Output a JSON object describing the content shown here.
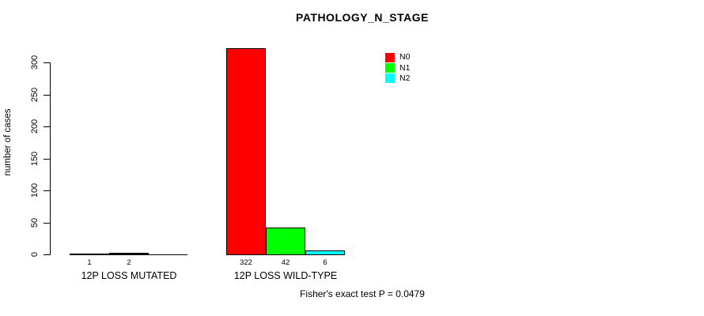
{
  "chart_data": {
    "type": "bar",
    "title": "PATHOLOGY_N_STAGE",
    "ylabel": "number of cases",
    "ylim": [
      0,
      300
    ],
    "yticks": [
      0,
      50,
      100,
      150,
      200,
      250,
      300
    ],
    "grid": false,
    "legend_position": "top-right-inside",
    "series_names": [
      "N0",
      "N1",
      "N2"
    ],
    "series_colors": [
      "#FF0000",
      "#00FF00",
      "#00FFFF"
    ],
    "groups": [
      {
        "label": "12P LOSS MUTATED",
        "values": [
          1,
          2,
          0
        ],
        "bar_labels": [
          "1",
          "2",
          ""
        ]
      },
      {
        "label": "12P LOSS WILD-TYPE",
        "values": [
          322,
          42,
          6
        ],
        "bar_labels": [
          "322",
          "42",
          "6"
        ]
      }
    ],
    "annotation": "Fisher's exact test P = 0.0479",
    "axis_color": "#000000"
  }
}
